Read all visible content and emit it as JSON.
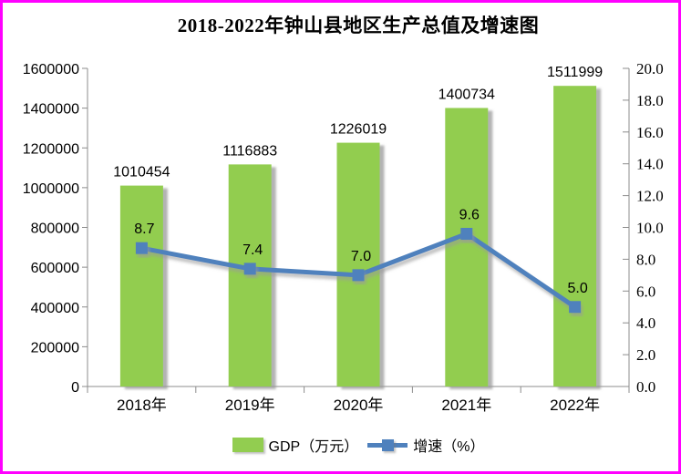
{
  "title": "2018-2022年钟山县地区生产总值及增速图",
  "colors": {
    "bar": "#92CD50",
    "line": "#4F81BD",
    "axis": "#8C8C8C",
    "frame_border": "#FF00FF",
    "text": "#000000"
  },
  "legend": {
    "gdp_label": "GDP（万元）",
    "growth_label": "增速（%）"
  },
  "chart_data": {
    "type": "bar",
    "subtype": "combo-bar-line",
    "title": "2018-2022年钟山县地区生产总值及增速图",
    "categories": [
      "2018年",
      "2019年",
      "2020年",
      "2021年",
      "2022年"
    ],
    "series": [
      {
        "name": "GDP（万元）",
        "type": "bar",
        "axis": "left",
        "color": "#92CD50",
        "values": [
          1010454,
          1116883,
          1226019,
          1400734,
          1511999
        ],
        "labels": [
          "1010454",
          "1116883",
          "1226019",
          "1400734",
          "1511999"
        ]
      },
      {
        "name": "增速（%）",
        "type": "line",
        "axis": "right",
        "color": "#4F81BD",
        "values": [
          8.7,
          7.4,
          7.0,
          9.6,
          5.0
        ],
        "labels": [
          "8.7",
          "7.4",
          "7.0",
          "9.6",
          "5.0"
        ]
      }
    ],
    "left_axis": {
      "min": 0,
      "max": 1600000,
      "step": 200000,
      "ticks": [
        "0",
        "200000",
        "400000",
        "600000",
        "800000",
        "1000000",
        "1200000",
        "1400000",
        "1600000"
      ]
    },
    "right_axis": {
      "min": 0,
      "max": 20,
      "step": 2,
      "ticks": [
        "0.0",
        "2.0",
        "4.0",
        "6.0",
        "8.0",
        "10.0",
        "12.0",
        "14.0",
        "16.0",
        "18.0",
        "20.0"
      ]
    },
    "grid": false,
    "legend_position": "bottom"
  }
}
